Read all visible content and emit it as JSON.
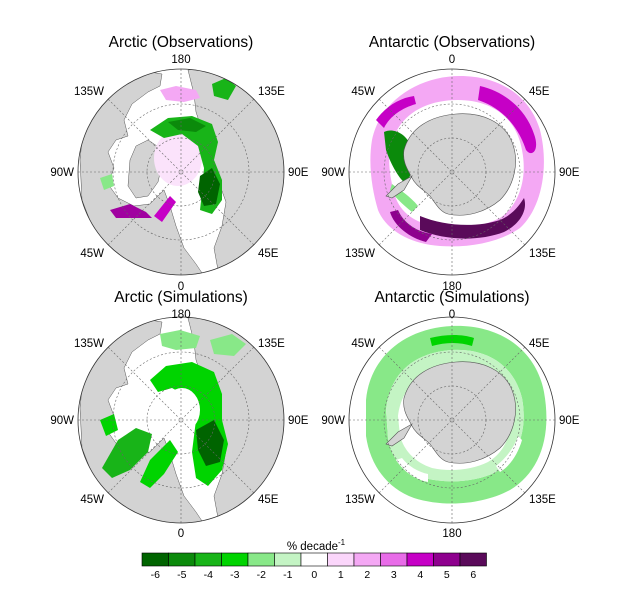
{
  "panels": [
    {
      "id": "arctic-obs",
      "title": "Arctic (Observations)",
      "labels": {
        "top": "180",
        "bottom": "0",
        "ul": "135W",
        "ur": "135E",
        "left": "90W",
        "right": "90E",
        "ll": "45W",
        "lr": "45E"
      }
    },
    {
      "id": "antarctic-obs",
      "title": "Antarctic (Observations)",
      "labels": {
        "top": "0",
        "bottom": "180",
        "ul": "45W",
        "ur": "45E",
        "left": "90W",
        "right": "90E",
        "ll": "135W",
        "lr": "135E"
      }
    },
    {
      "id": "arctic-sim",
      "title": "Arctic (Simulations)",
      "labels": {
        "top": "180",
        "bottom": "0",
        "ul": "135W",
        "ur": "135E",
        "left": "90W",
        "right": "90E",
        "ll": "45W",
        "lr": "45E"
      }
    },
    {
      "id": "antarctic-sim",
      "title": "Antarctic (Simulations)",
      "labels": {
        "top": "0",
        "bottom": "180",
        "ul": "45W",
        "ur": "45E",
        "left": "90W",
        "right": "90E",
        "ll": "135W",
        "lr": "135E"
      }
    }
  ],
  "colorbar": {
    "unit_main": "% decade",
    "unit_sup": "-1",
    "ticks": [
      "-6",
      "-5",
      "-4",
      "-3",
      "-2",
      "-1",
      "0",
      "1",
      "2",
      "3",
      "4",
      "5",
      "6"
    ],
    "colors": [
      "#006400",
      "#0b8a0b",
      "#18b418",
      "#00d400",
      "#88e888",
      "#c4f4c4",
      "#ffffff",
      "#fbd6fb",
      "#f4a8f4",
      "#e86ce8",
      "#c600c6",
      "#8e008e",
      "#5a0a5a"
    ]
  },
  "colors": {
    "land": "#d3d3d3",
    "ocean": "#ffffff",
    "coast": "#555555",
    "grid": "#666666"
  }
}
